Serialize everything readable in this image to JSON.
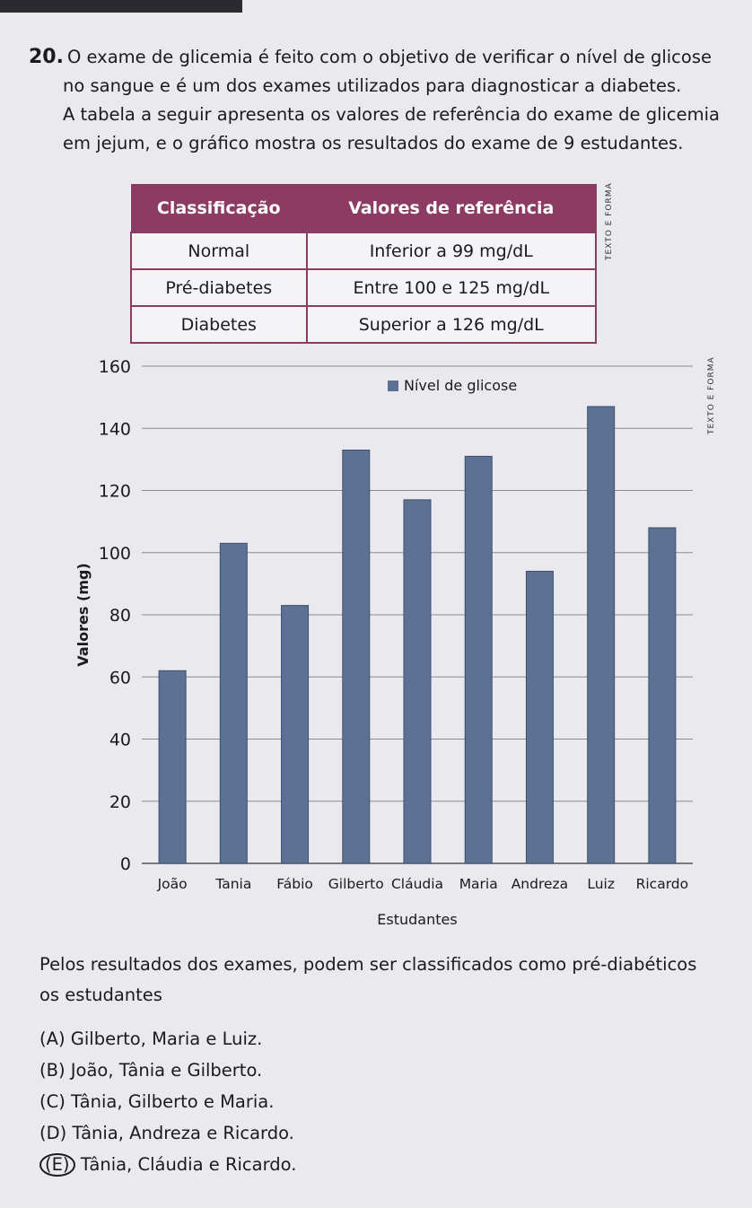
{
  "question": {
    "number": "20.",
    "lines": [
      "O exame de glicemia é feito com o objetivo de verificar o nível de glicose",
      "no sangue e é um dos exames utilizados para diagnosticar a diabetes.",
      "A tabela a seguir apresenta os valores de referência do exame de glicemia",
      "em jejum, e o gráfico mostra os resultados do exame de 9 estudantes."
    ]
  },
  "table": {
    "headers": [
      "Classificação",
      "Valores de referência"
    ],
    "rows": [
      [
        "Normal",
        "Inferior a 99 mg/dL"
      ],
      [
        "Pré-diabetes",
        "Entre 100 e 125 mg/dL"
      ],
      [
        "Diabetes",
        "Superior a 126 mg/dL"
      ]
    ],
    "header_color": "#8c3b63"
  },
  "side_label": "TEXTO E FORMA",
  "chart_data": {
    "type": "bar",
    "categories": [
      "João",
      "Tania",
      "Fábio",
      "Gilberto",
      "Cláudia",
      "Maria",
      "Andreza",
      "Luiz",
      "Ricardo"
    ],
    "series": [
      {
        "name": "Nível de glicose",
        "values": [
          62,
          103,
          83,
          133,
          117,
          131,
          94,
          147,
          108
        ],
        "color": "#5c7194"
      }
    ],
    "xlabel": "Estudantes",
    "ylabel": "Valores (mg)",
    "ylim": [
      0,
      160
    ],
    "yticks": [
      0,
      20,
      40,
      60,
      80,
      100,
      120,
      140,
      160
    ],
    "grid": true,
    "legend": "top-center"
  },
  "prompt": {
    "lines": [
      "Pelos resultados dos exames, podem ser classificados como pré-diabéticos",
      "os estudantes"
    ]
  },
  "options": [
    {
      "letter": "(A)",
      "text": "Gilberto, Maria e Luiz."
    },
    {
      "letter": "(B)",
      "text": "João, Tânia e Gilberto."
    },
    {
      "letter": "(C)",
      "text": "Tânia, Gilberto e Maria."
    },
    {
      "letter": "(D)",
      "text": "Tânia, Andreza e Ricardo."
    },
    {
      "letter": "(E)",
      "text": "Tânia, Cláudia e Ricardo."
    }
  ]
}
